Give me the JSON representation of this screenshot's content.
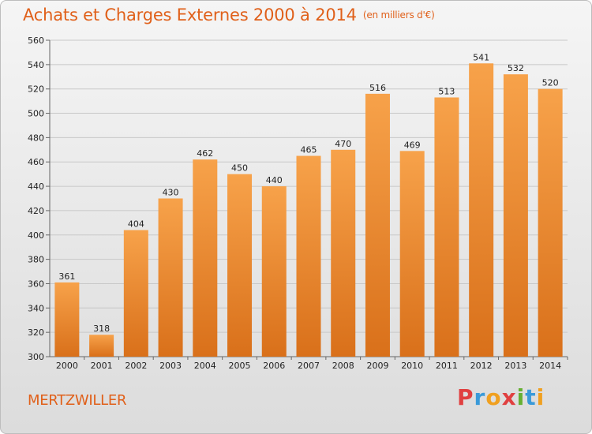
{
  "title": "Achats et Charges Externes 2000 à 2014",
  "subtitle": "(en milliers d'€)",
  "city": "MERTZWILLER",
  "logo": {
    "letters": [
      "P",
      "r",
      "o",
      "x",
      "i",
      "t",
      "i"
    ],
    "colors": [
      "#e04040",
      "#3a9ad9",
      "#f0a020",
      "#e04040",
      "#66b032",
      "#3a9ad9",
      "#f0a020"
    ]
  },
  "colors": {
    "bar_top": "#f7a24a",
    "bar_bottom": "#d9701a",
    "title": "#e0601a"
  },
  "chart_data": {
    "type": "bar",
    "categories": [
      "2000",
      "2001",
      "2002",
      "2003",
      "2004",
      "2005",
      "2006",
      "2007",
      "2008",
      "2009",
      "2010",
      "2011",
      "2012",
      "2013",
      "2014"
    ],
    "values": [
      361,
      318,
      404,
      430,
      462,
      450,
      440,
      465,
      470,
      516,
      469,
      513,
      541,
      532,
      520
    ],
    "ylim": [
      300,
      560
    ],
    "yticks": [
      300,
      320,
      340,
      360,
      380,
      400,
      420,
      440,
      460,
      480,
      500,
      520,
      540,
      560
    ],
    "grid": true,
    "data_labels": true
  }
}
